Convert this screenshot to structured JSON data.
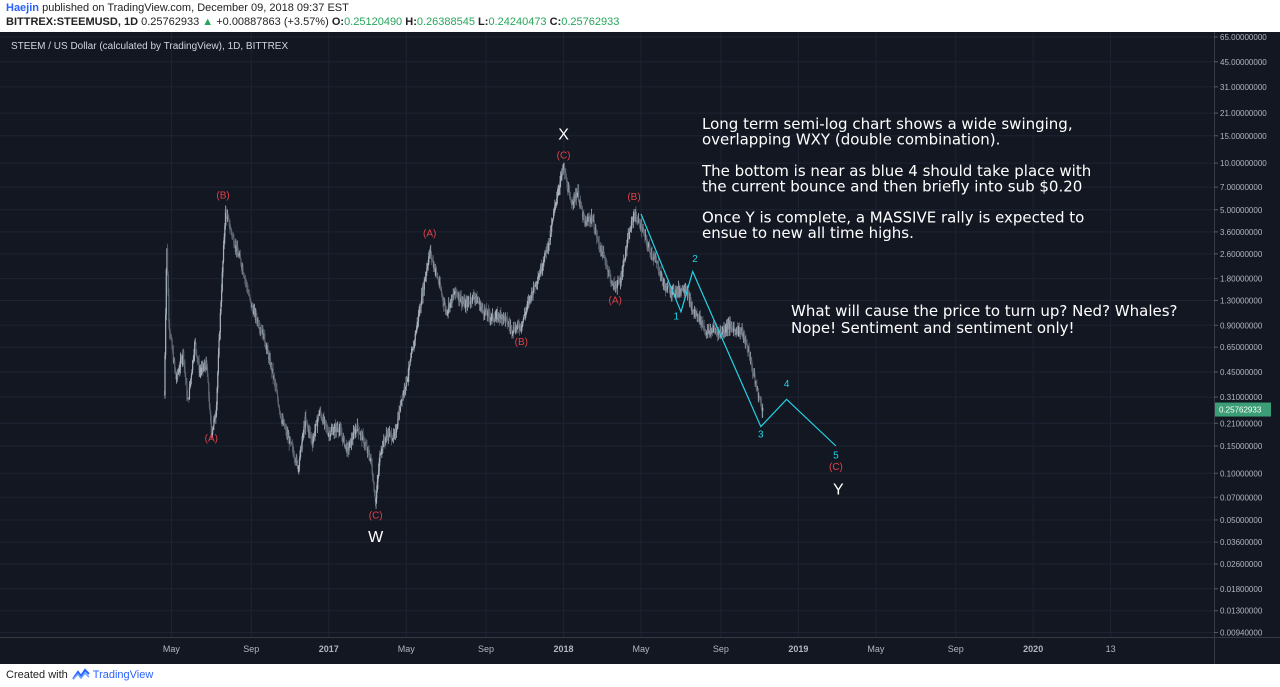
{
  "header": {
    "author": "Haejin",
    "published_text": "published on TradingView.com, December 09, 2018 09:37 EST",
    "symbol": "BITTREX:STEEMUSD, 1D",
    "last_price": "0.25762933",
    "change": "+0.00887863 (+3.57%)",
    "open_label": "O:",
    "open": "0.25120490",
    "high_label": "H:",
    "high": "0.26388545",
    "low_label": "L:",
    "low": "0.24240473",
    "close_label": "C:",
    "close": "0.25762933"
  },
  "footer": {
    "created_with": "Created with",
    "brand": "TradingView"
  },
  "colors": {
    "background": "#131722",
    "grid": "#1e2333",
    "axis_text": "#b2b5be",
    "candle_up": "#a7b1bd",
    "candle_down": "#5e6673",
    "wave_red": "#e0424b",
    "wave_cyan": "#22d3e6",
    "price_badge": "#3c9e76"
  },
  "chart_data": {
    "type": "candlestick",
    "title": "STEEM / US Dollar (calculated by TradingView), 1D, BITTREX",
    "y_scale": "log",
    "y_ticks": [
      "65.00000000",
      "45.00000000",
      "31.00000000",
      "21.00000000",
      "15.00000000",
      "10.00000000",
      "7.00000000",
      "5.00000000",
      "3.60000000",
      "2.60000000",
      "1.80000000",
      "1.30000000",
      "0.90000000",
      "0.65000000",
      "0.45000000",
      "0.31000000",
      "0.21000000",
      "0.15000000",
      "0.10000000",
      "0.07000000",
      "0.05000000",
      "0.03600000",
      "0.02600000",
      "0.01800000",
      "0.01300000",
      "0.00940000"
    ],
    "ylim": [
      0.0088,
      70
    ],
    "x_ticks": [
      {
        "label": "May",
        "t": 2016.33,
        "bold": false
      },
      {
        "label": "Sep",
        "t": 2016.67,
        "bold": false
      },
      {
        "label": "2017",
        "t": 2017.0,
        "bold": true
      },
      {
        "label": "May",
        "t": 2017.33,
        "bold": false
      },
      {
        "label": "Sep",
        "t": 2017.67,
        "bold": false
      },
      {
        "label": "2018",
        "t": 2018.0,
        "bold": true
      },
      {
        "label": "May",
        "t": 2018.33,
        "bold": false
      },
      {
        "label": "Sep",
        "t": 2018.67,
        "bold": false
      },
      {
        "label": "2019",
        "t": 2019.0,
        "bold": true
      },
      {
        "label": "May",
        "t": 2019.33,
        "bold": false
      },
      {
        "label": "Sep",
        "t": 2019.67,
        "bold": false
      },
      {
        "label": "2020",
        "t": 2020.0,
        "bold": true
      },
      {
        "label": "13",
        "t": 2020.33,
        "bold": false
      }
    ],
    "xlim": [
      2015.6,
      2020.77
    ],
    "current_price_label": "0.25762933",
    "current_price": 0.2576,
    "price_path": [
      [
        2016.3,
        0.32
      ],
      [
        2016.31,
        3.1
      ],
      [
        2016.32,
        0.9
      ],
      [
        2016.35,
        0.4
      ],
      [
        2016.38,
        0.6
      ],
      [
        2016.4,
        0.28
      ],
      [
        2016.43,
        0.7
      ],
      [
        2016.45,
        0.45
      ],
      [
        2016.48,
        0.5
      ],
      [
        2016.5,
        0.18
      ],
      [
        2016.52,
        0.25
      ],
      [
        2016.54,
        1.2
      ],
      [
        2016.56,
        4.9
      ],
      [
        2016.6,
        3.0
      ],
      [
        2016.63,
        2.2
      ],
      [
        2016.67,
        1.2
      ],
      [
        2016.72,
        0.8
      ],
      [
        2016.76,
        0.45
      ],
      [
        2016.8,
        0.22
      ],
      [
        2016.84,
        0.15
      ],
      [
        2016.87,
        0.11
      ],
      [
        2016.9,
        0.22
      ],
      [
        2016.93,
        0.16
      ],
      [
        2016.96,
        0.25
      ],
      [
        2017.0,
        0.18
      ],
      [
        2017.04,
        0.2
      ],
      [
        2017.08,
        0.14
      ],
      [
        2017.12,
        0.2
      ],
      [
        2017.15,
        0.16
      ],
      [
        2017.18,
        0.12
      ],
      [
        2017.2,
        0.065
      ],
      [
        2017.22,
        0.14
      ],
      [
        2017.25,
        0.18
      ],
      [
        2017.28,
        0.17
      ],
      [
        2017.31,
        0.3
      ],
      [
        2017.34,
        0.45
      ],
      [
        2017.37,
        0.8
      ],
      [
        2017.4,
        1.5
      ],
      [
        2017.43,
        2.7
      ],
      [
        2017.46,
        1.9
      ],
      [
        2017.5,
        1.1
      ],
      [
        2017.54,
        1.5
      ],
      [
        2017.58,
        1.2
      ],
      [
        2017.62,
        1.4
      ],
      [
        2017.66,
        1.1
      ],
      [
        2017.7,
        1.0
      ],
      [
        2017.74,
        1.05
      ],
      [
        2017.78,
        0.85
      ],
      [
        2017.82,
        0.9
      ],
      [
        2017.86,
        1.4
      ],
      [
        2017.9,
        2.0
      ],
      [
        2017.94,
        3.2
      ],
      [
        2017.97,
        6.0
      ],
      [
        2018.0,
        9.5
      ],
      [
        2018.03,
        5.5
      ],
      [
        2018.06,
        6.5
      ],
      [
        2018.09,
        4.0
      ],
      [
        2018.12,
        4.5
      ],
      [
        2018.15,
        3.0
      ],
      [
        2018.18,
        2.3
      ],
      [
        2018.21,
        1.6
      ],
      [
        2018.24,
        1.7
      ],
      [
        2018.27,
        3.0
      ],
      [
        2018.3,
        4.7
      ],
      [
        2018.33,
        3.9
      ],
      [
        2018.36,
        2.9
      ],
      [
        2018.4,
        2.2
      ],
      [
        2018.43,
        1.6
      ],
      [
        2018.46,
        1.5
      ],
      [
        2018.49,
        1.5
      ],
      [
        2018.52,
        1.6
      ],
      [
        2018.55,
        1.1
      ],
      [
        2018.58,
        1.0
      ],
      [
        2018.61,
        0.8
      ],
      [
        2018.64,
        0.85
      ],
      [
        2018.67,
        0.8
      ],
      [
        2018.7,
        0.9
      ],
      [
        2018.73,
        0.85
      ],
      [
        2018.76,
        0.82
      ],
      [
        2018.79,
        0.6
      ],
      [
        2018.81,
        0.42
      ],
      [
        2018.83,
        0.32
      ],
      [
        2018.85,
        0.25
      ]
    ],
    "wave_lines": [
      {
        "color": "cyan",
        "points": [
          [
            2018.33,
            4.7
          ],
          [
            2018.5,
            1.1
          ],
          [
            2018.55,
            2.0
          ],
          [
            2018.84,
            0.2
          ],
          [
            2018.95,
            0.3
          ],
          [
            2019.16,
            0.15
          ]
        ]
      }
    ],
    "annotations": [
      {
        "text": "(B)",
        "color": "red",
        "t": 2016.55,
        "y": 5.9,
        "size": 10
      },
      {
        "text": "(A)",
        "color": "red",
        "t": 2016.5,
        "y": 0.16,
        "size": 10
      },
      {
        "text": "(C)",
        "color": "red",
        "t": 2017.2,
        "y": 0.051,
        "size": 10
      },
      {
        "text": "W",
        "color": "white",
        "t": 2017.2,
        "y": 0.036,
        "size": 16
      },
      {
        "text": "(A)",
        "color": "red",
        "t": 2017.43,
        "y": 3.35,
        "size": 10
      },
      {
        "text": "(B)",
        "color": "red",
        "t": 2017.82,
        "y": 0.67,
        "size": 10
      },
      {
        "text": "X",
        "color": "white",
        "t": 2018.0,
        "y": 14.2,
        "size": 16
      },
      {
        "text": "(C)",
        "color": "red",
        "t": 2018.0,
        "y": 10.7,
        "size": 10
      },
      {
        "text": "(B)",
        "color": "red",
        "t": 2018.3,
        "y": 5.8,
        "size": 10
      },
      {
        "text": "(A)",
        "color": "red",
        "t": 2018.22,
        "y": 1.24,
        "size": 10
      },
      {
        "text": "1",
        "color": "cyan",
        "t": 2018.48,
        "y": 0.98,
        "size": 10
      },
      {
        "text": "2",
        "color": "cyan",
        "t": 2018.56,
        "y": 2.3,
        "size": 10
      },
      {
        "text": "3",
        "color": "cyan",
        "t": 2018.84,
        "y": 0.17,
        "size": 10
      },
      {
        "text": "4",
        "color": "cyan",
        "t": 2018.95,
        "y": 0.36,
        "size": 10
      },
      {
        "text": "5",
        "color": "cyan",
        "t": 2019.16,
        "y": 0.125,
        "size": 10
      },
      {
        "text": "(C)",
        "color": "red",
        "t": 2019.16,
        "y": 0.105,
        "size": 10
      },
      {
        "text": "Y",
        "color": "white",
        "t": 2019.17,
        "y": 0.073,
        "size": 16
      }
    ],
    "notes": [
      "Long term semi-log chart shows a wide swinging,",
      "overlapping WXY (double combination).",
      "",
      "The bottom is near as blue 4 should take place with",
      "the current bounce and then briefly into sub $0.20",
      "",
      "Once Y is complete, a MASSIVE rally is expected to",
      "ensue to new all time highs."
    ],
    "notes2": [
      "What will cause the price to turn up? Ned? Whales?",
      "Nope! Sentiment and sentiment only!"
    ]
  }
}
